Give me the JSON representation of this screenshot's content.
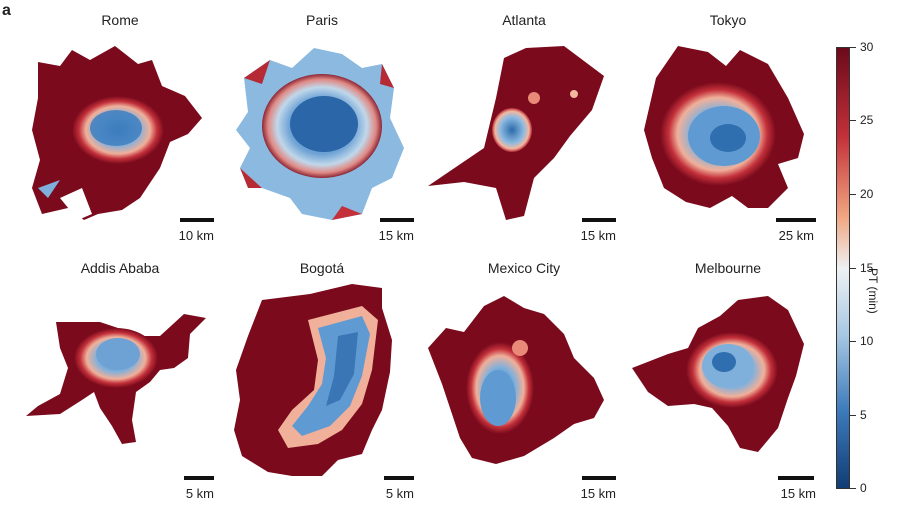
{
  "panel_letter": "a",
  "colors": {
    "low": "#1b4f8f",
    "mid_low": "#5f9bd2",
    "mid": "#e9eef4",
    "mid_high": "#f2a07b",
    "high": "#7a0a1c"
  },
  "cities_top": [
    {
      "name": "Rome",
      "scale": "10 km"
    },
    {
      "name": "Paris",
      "scale": "15 km"
    },
    {
      "name": "Atlanta",
      "scale": "15 km"
    },
    {
      "name": "Tokyo",
      "scale": "25 km"
    }
  ],
  "cities_bottom": [
    {
      "name": "Addis Ababa",
      "scale": "5 km"
    },
    {
      "name": "Bogotá",
      "scale": "5 km"
    },
    {
      "name": "Mexico City",
      "scale": "15 km"
    },
    {
      "name": "Melbourne",
      "scale": "15 km"
    }
  ],
  "colorbar": {
    "title": "PT (min)",
    "ticks": [
      "30",
      "25",
      "20",
      "15",
      "10",
      "5",
      "0"
    ]
  }
}
